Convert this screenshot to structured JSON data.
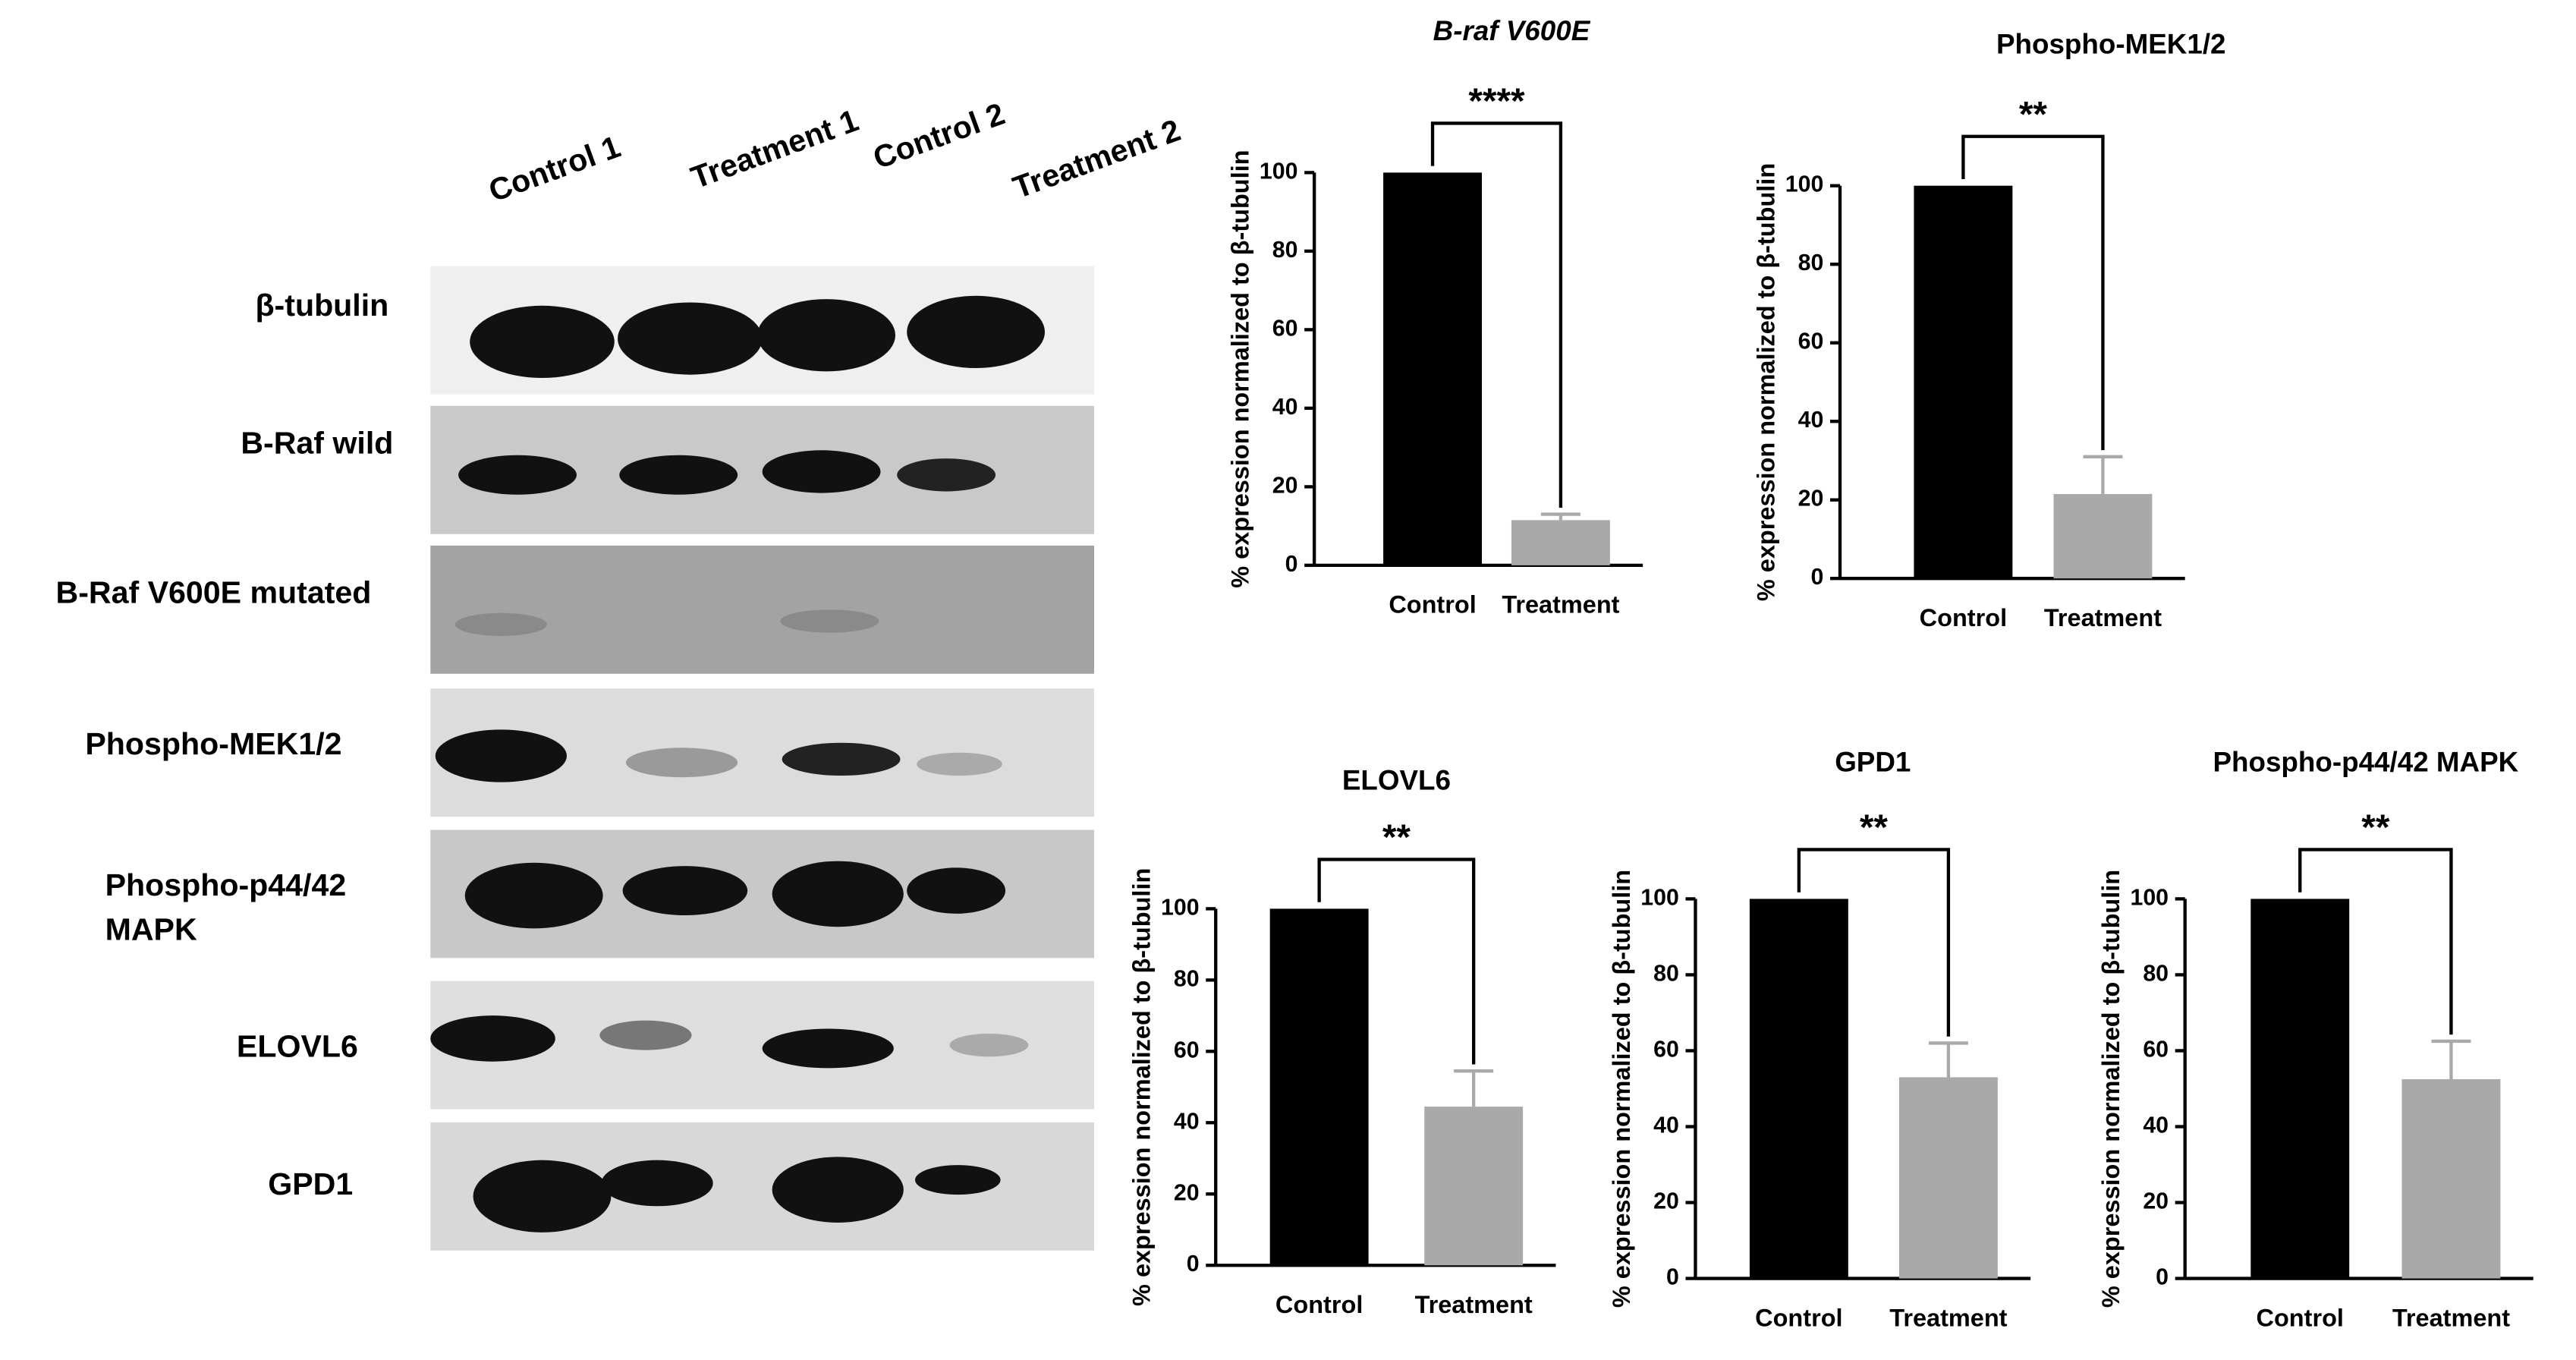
{
  "blot": {
    "lanes": [
      "Control 1",
      "Treatment 1",
      "Control 2",
      "Treatment 2"
    ],
    "rows": [
      "β-tubulin",
      "B-Raf wild",
      "B-Raf V600E mutated",
      "Phospho-MEK1/2",
      [
        "Phospho-p44/42",
        "MAPK"
      ],
      "ELOVL6",
      "GPD1"
    ]
  },
  "chart_data": [
    {
      "type": "bar",
      "title": "B-raf V600E",
      "title_style": "italic",
      "y_label": "% expression normalized to β-tubulin",
      "categories": [
        "Control",
        "Treatment"
      ],
      "values": [
        100,
        11.5
      ],
      "errors": [
        null,
        1.5
      ],
      "colors": [
        "#000000",
        "#a9a9a9"
      ],
      "ylim": [
        0,
        100
      ],
      "yticks": [
        0,
        20,
        40,
        60,
        80,
        100
      ],
      "significance": "****"
    },
    {
      "type": "bar",
      "title": "Phospho-MEK1/2",
      "title_style": "normal",
      "y_label": "% expression normalized to β-tubulin",
      "categories": [
        "Control",
        "Treatment"
      ],
      "values": [
        100,
        21.5
      ],
      "errors": [
        null,
        9.5
      ],
      "colors": [
        "#000000",
        "#a9a9a9"
      ],
      "ylim": [
        0,
        100
      ],
      "yticks": [
        0,
        20,
        40,
        60,
        80,
        100
      ],
      "significance": "**"
    },
    {
      "type": "bar",
      "title": "ELOVL6",
      "title_style": "normal",
      "y_label": "% expression normalized to β-tubulin",
      "categories": [
        "Control",
        "Treatment"
      ],
      "values": [
        100,
        44.5
      ],
      "errors": [
        null,
        10
      ],
      "colors": [
        "#000000",
        "#a9a9a9"
      ],
      "ylim": [
        0,
        100
      ],
      "yticks": [
        0,
        20,
        40,
        60,
        80,
        100
      ],
      "significance": "**"
    },
    {
      "type": "bar",
      "title": "GPD1",
      "title_style": "normal",
      "y_label": "% expression normalized to β-tubulin",
      "categories": [
        "Control",
        "Treatment"
      ],
      "values": [
        100,
        53
      ],
      "errors": [
        null,
        9
      ],
      "colors": [
        "#000000",
        "#a9a9a9"
      ],
      "ylim": [
        0,
        100
      ],
      "yticks": [
        0,
        20,
        40,
        60,
        80,
        100
      ],
      "significance": "**"
    },
    {
      "type": "bar",
      "title": "Phospho-p44/42 MAPK",
      "title_style": "normal",
      "y_label": "% expression normalized to β-tubulin",
      "categories": [
        "Control",
        "Treatment"
      ],
      "values": [
        100,
        52.5
      ],
      "errors": [
        null,
        10
      ],
      "colors": [
        "#000000",
        "#a9a9a9"
      ],
      "ylim": [
        0,
        100
      ],
      "yticks": [
        0,
        20,
        40,
        60,
        80,
        100
      ],
      "significance": "**"
    }
  ]
}
